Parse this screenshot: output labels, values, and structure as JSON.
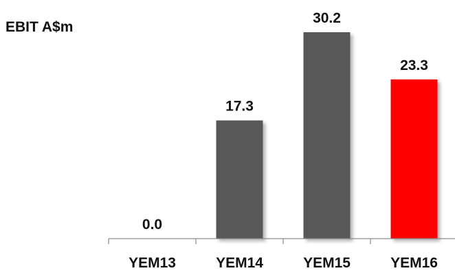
{
  "chart_data": {
    "type": "bar",
    "title": "EBIT A$m",
    "categories": [
      "YEM13",
      "YEM14",
      "YEM15",
      "YEM16"
    ],
    "values": [
      0.0,
      17.3,
      30.2,
      23.3
    ],
    "value_labels": [
      "0.0",
      "17.3",
      "30.2",
      "23.3"
    ],
    "bar_colors": [
      "#595959",
      "#595959",
      "#595959",
      "#ff0000"
    ],
    "xlabel": "",
    "ylabel": "",
    "ylim": [
      0,
      30.2
    ],
    "grid": false,
    "legend": "none"
  }
}
